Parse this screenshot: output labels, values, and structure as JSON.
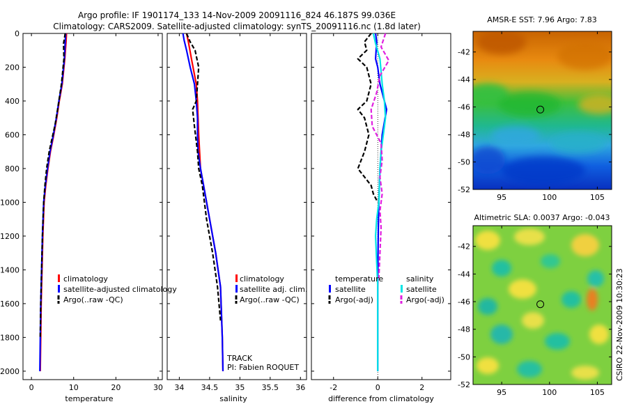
{
  "title_line1": "Argo profile: IF 1901174_133 14-Nov-2009 20091116_824 46.187S 99.036E",
  "title_line2": "Climatology: CARS2009. Satellite-adjusted climatology: synTS_20091116.nc (1.8d later)",
  "side_stamp": "CSIRO 22-Nov-2009 10:30:23",
  "track_label": "TRACK",
  "pi_label": "PI: Fabien ROQUET",
  "colors": {
    "climatology": "#ff0000",
    "satellite": "#0000ff",
    "argo": "#000000",
    "sal_satellite": "#00e5e5",
    "sal_argo": "#e020e0"
  },
  "chart_data": [
    {
      "type": "line",
      "id": "temperature",
      "xlabel": "temperature",
      "xlim": [
        -2,
        31
      ],
      "ylim": [
        0,
        2050
      ],
      "y_reversed": true,
      "xticks": [
        0,
        10,
        20,
        30
      ],
      "yticks": [
        0,
        200,
        400,
        600,
        800,
        1000,
        1200,
        1400,
        1600,
        1800,
        2000
      ],
      "legend": [
        "climatology",
        "satellite-adjusted climatology",
        "Argo(..raw -QC)"
      ],
      "series": [
        {
          "name": "climatology",
          "color": "#ff0000",
          "dash": "",
          "x": [
            8.3,
            8.2,
            7.9,
            7.3,
            6.6,
            6.0,
            5.3,
            4.5,
            3.9,
            3.4,
            3.0,
            2.7,
            2.5,
            2.3,
            2.2,
            2.1
          ],
          "y": [
            0,
            50,
            150,
            300,
            400,
            500,
            600,
            700,
            800,
            900,
            1000,
            1200,
            1400,
            1600,
            1800,
            2000
          ]
        },
        {
          "name": "satellite-adjusted climatology",
          "color": "#0000ff",
          "dash": "",
          "x": [
            8.1,
            8.0,
            7.8,
            7.2,
            6.5,
            5.9,
            5.2,
            4.4,
            3.8,
            3.3,
            2.9,
            2.6,
            2.4,
            2.2,
            2.1,
            2.0
          ],
          "y": [
            0,
            50,
            150,
            300,
            400,
            500,
            600,
            700,
            800,
            900,
            1000,
            1200,
            1400,
            1600,
            1800,
            2000
          ]
        },
        {
          "name": "Argo(..raw -QC)",
          "color": "#000000",
          "dash": "6,3",
          "x": [
            8.0,
            7.6,
            7.7,
            7.1,
            6.2,
            5.6,
            4.9,
            4.2,
            3.6,
            3.2,
            2.9,
            2.6,
            2.4,
            2.2,
            2.1
          ],
          "y": [
            0,
            60,
            150,
            300,
            450,
            540,
            620,
            700,
            800,
            900,
            1000,
            1200,
            1400,
            1600,
            1800
          ]
        }
      ]
    },
    {
      "type": "line",
      "id": "salinity",
      "xlabel": "salinity",
      "xlim": [
        33.8,
        36.1
      ],
      "ylim": [
        0,
        2050
      ],
      "y_reversed": true,
      "xticks": [
        34,
        34.5,
        35,
        35.5,
        36
      ],
      "yticks": [
        0,
        200,
        400,
        600,
        800,
        1000,
        1200,
        1400,
        1600,
        1800,
        2000
      ],
      "legend": [
        "climatology",
        "satellite adj. clim.",
        "Argo(..raw -QC)"
      ],
      "series": [
        {
          "name": "climatology",
          "color": "#ff0000",
          "dash": "",
          "x": [
            34.12,
            34.15,
            34.2,
            34.28,
            34.3,
            34.31,
            34.32,
            34.35,
            34.4,
            34.5,
            34.6,
            34.68,
            34.71,
            34.72
          ],
          "y": [
            0,
            50,
            150,
            300,
            400,
            500,
            600,
            800,
            900,
            1100,
            1300,
            1500,
            1800,
            2000
          ]
        },
        {
          "name": "satellite adj. clim.",
          "color": "#0000ff",
          "dash": "",
          "x": [
            34.06,
            34.08,
            34.12,
            34.18,
            34.25,
            34.28,
            34.3,
            34.3,
            34.31,
            34.35,
            34.4,
            34.5,
            34.6,
            34.68,
            34.71,
            34.72
          ],
          "y": [
            0,
            40,
            100,
            200,
            300,
            400,
            500,
            600,
            700,
            800,
            900,
            1100,
            1300,
            1500,
            1800,
            2000
          ]
        },
        {
          "name": "Argo(..raw -QC)",
          "color": "#000000",
          "dash": "6,3",
          "x": [
            34.12,
            34.18,
            34.26,
            34.32,
            34.3,
            34.28,
            34.22,
            34.25,
            34.3,
            34.32,
            34.38,
            34.45,
            34.55,
            34.63,
            34.68
          ],
          "y": [
            0,
            50,
            100,
            200,
            300,
            400,
            450,
            550,
            700,
            800,
            900,
            1100,
            1300,
            1500,
            1700
          ]
        }
      ]
    },
    {
      "type": "line",
      "id": "difference",
      "xlabel": "difference from climatology",
      "xlim": [
        -3,
        3.3
      ],
      "ylim": [
        0,
        2050
      ],
      "y_reversed": true,
      "xticks": [
        -2,
        0,
        2
      ],
      "yticks": [
        0,
        200,
        400,
        600,
        800,
        1000,
        1200,
        1400,
        1600,
        1800,
        2000
      ],
      "legend_temperature_title": "temperature",
      "legend_salinity_title": "salinity",
      "legend_temperature": [
        "satellite",
        "Argo(-adj)"
      ],
      "legend_salinity": [
        "satellite",
        "Argo(-adj)"
      ],
      "series": [
        {
          "name": "temperature satellite",
          "color": "#0000ff",
          "dash": "",
          "x": [
            -0.1,
            -0.05,
            -0.1,
            0,
            0.1,
            0.3,
            0.4,
            0.2,
            0.15,
            0.1,
            0.05,
            0.02,
            0,
            0
          ],
          "y": [
            0,
            50,
            150,
            200,
            300,
            400,
            450,
            600,
            700,
            800,
            1000,
            1200,
            1500,
            2000
          ]
        },
        {
          "name": "temperature Argo(-adj)",
          "color": "#000000",
          "dash": "6,3",
          "x": [
            -0.3,
            -0.6,
            -0.5,
            -0.9,
            -0.5,
            -0.3,
            -0.5,
            -0.9,
            -0.6,
            -0.4,
            -0.6,
            -0.9,
            -0.6,
            -0.3,
            -0.2,
            0
          ],
          "y": [
            0,
            50,
            100,
            150,
            200,
            300,
            400,
            450,
            500,
            600,
            700,
            800,
            850,
            900,
            950,
            1000
          ]
        },
        {
          "name": "salinity satellite",
          "color": "#00e5e5",
          "dash": "",
          "x": [
            -0.2,
            -0.1,
            0.1,
            0.2,
            0.3,
            0.35,
            0.25,
            0.15,
            0.1,
            0.05,
            -0.05,
            -0.1,
            0,
            0
          ],
          "y": [
            0,
            60,
            150,
            300,
            400,
            500,
            600,
            700,
            800,
            1000,
            1100,
            1200,
            1500,
            2000
          ]
        },
        {
          "name": "salinity Argo(-adj)",
          "color": "#e020e0",
          "dash": "6,3",
          "x": [
            0.35,
            0.15,
            0.5,
            0.1,
            -0.05,
            -0.3,
            -0.25,
            0.15,
            0.2,
            0.1,
            0.2,
            0.1,
            0.15,
            0.1,
            0.05
          ],
          "y": [
            0,
            80,
            160,
            250,
            350,
            450,
            550,
            650,
            750,
            850,
            950,
            1050,
            1150,
            1300,
            1450
          ]
        }
      ]
    },
    {
      "type": "heatmap",
      "id": "sst_map",
      "title": "AMSR-E SST: 7.96 Argo: 7.83",
      "xlim": [
        92,
        106.5
      ],
      "ylim": [
        -52,
        -40.5
      ],
      "xticks": [
        95,
        100,
        105
      ],
      "yticks": [
        -42,
        -44,
        -46,
        -48,
        -50,
        -52
      ],
      "marker": {
        "lon": 99.036,
        "lat": -46.187
      }
    },
    {
      "type": "heatmap",
      "id": "sla_map",
      "title": "Altimetric SLA: 0.0037 Argo: -0.043",
      "xlim": [
        92,
        106.5
      ],
      "ylim": [
        -52,
        -40.5
      ],
      "xticks": [
        95,
        100,
        105
      ],
      "yticks": [
        -42,
        -44,
        -46,
        -48,
        -50,
        -52
      ],
      "marker": {
        "lon": 99.036,
        "lat": -46.187
      }
    }
  ]
}
